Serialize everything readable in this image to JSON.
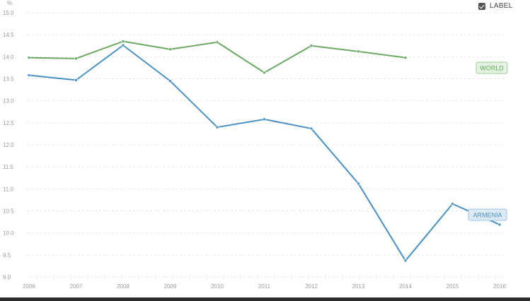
{
  "controls": {
    "label_toggle": "LABEL",
    "label_checked": true
  },
  "chart_data": {
    "type": "line",
    "y_unit": "%",
    "x": [
      "2006",
      "2007",
      "2008",
      "2009",
      "2010",
      "2011",
      "2012",
      "2013",
      "2014",
      "2015",
      "2016"
    ],
    "y_ticks": [
      "9.0",
      "9.5",
      "10.0",
      "10.5",
      "11.0",
      "11.5",
      "12.0",
      "12.5",
      "13.0",
      "13.5",
      "14.0",
      "14.5",
      "15.0"
    ],
    "ylim": [
      9.0,
      15.0
    ],
    "grid": true,
    "series": [
      {
        "name": "WORLD",
        "color": "#6aaa64",
        "values": [
          13.98,
          13.96,
          14.35,
          14.17,
          14.33,
          13.64,
          14.25,
          14.12,
          13.98,
          null,
          null
        ]
      },
      {
        "name": "ARMENIA",
        "color": "#4a90c0",
        "values": [
          13.58,
          13.47,
          14.26,
          13.45,
          12.4,
          12.58,
          12.37,
          11.12,
          9.37,
          10.66,
          10.19
        ]
      }
    ]
  }
}
